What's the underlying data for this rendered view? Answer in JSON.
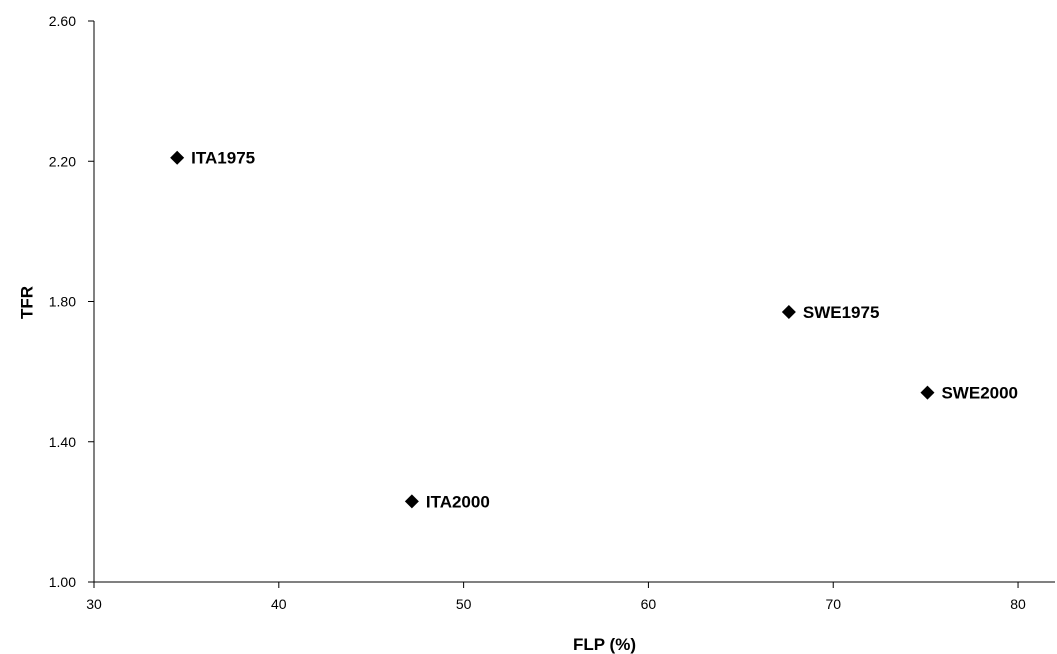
{
  "chart_data": {
    "type": "scatter",
    "title": "",
    "xlabel": "FLP (%)",
    "ylabel": "TFR",
    "xlim": [
      30,
      82
    ],
    "ylim": [
      1.0,
      2.6
    ],
    "xticks": [
      30,
      40,
      50,
      60,
      70,
      80
    ],
    "yticks": [
      1.0,
      1.4,
      1.8,
      2.2,
      2.6
    ],
    "xtick_labels": [
      "30",
      "40",
      "50",
      "60",
      "70",
      "80"
    ],
    "ytick_labels": [
      "1.00",
      "1.40",
      "1.80",
      "2.20",
      "2.60"
    ],
    "grid": false,
    "legend": "none",
    "marker": "diamond",
    "marker_color": "#000000",
    "points": [
      {
        "label": "ITA1975",
        "x": 34.5,
        "y": 2.21
      },
      {
        "label": "ITA2000",
        "x": 47.2,
        "y": 1.23
      },
      {
        "label": "SWE1975",
        "x": 67.6,
        "y": 1.77
      },
      {
        "label": "SWE2000",
        "x": 75.1,
        "y": 1.54
      }
    ]
  }
}
